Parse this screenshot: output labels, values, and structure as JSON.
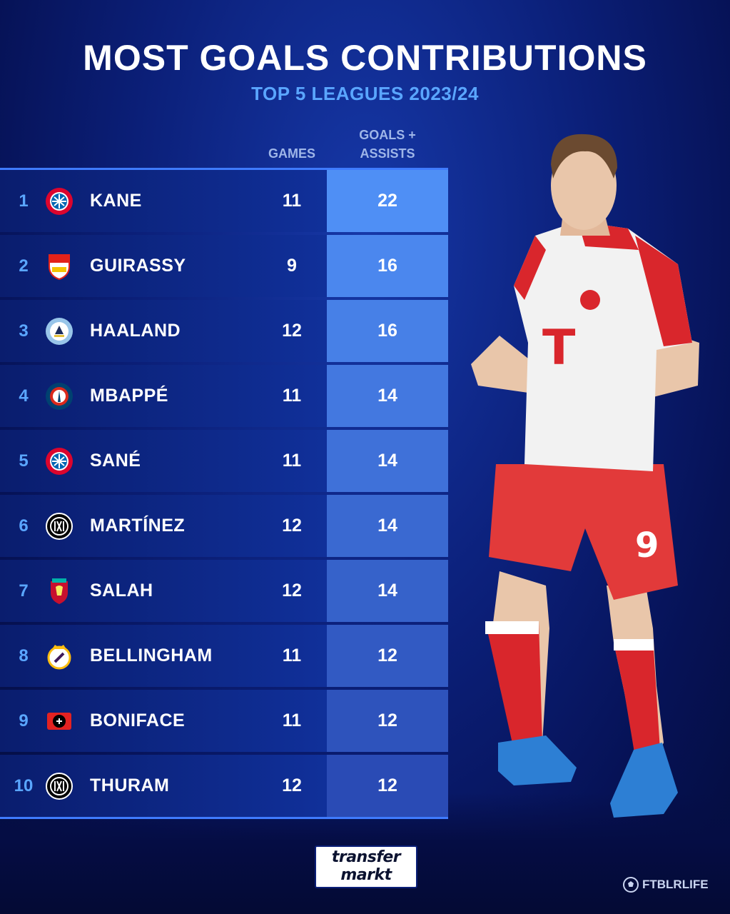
{
  "header": {
    "title": "MOST GOALS CONTRIBUTIONS",
    "subtitle": "TOP 5 LEAGUES 2023/24"
  },
  "columns": {
    "games": "GAMES",
    "goals_assists_line1": "GOALS +",
    "goals_assists_line2": "ASSISTS"
  },
  "chart_data": {
    "type": "table",
    "title": "MOST GOALS CONTRIBUTIONS",
    "subtitle": "TOP 5 LEAGUES 2023/24",
    "columns": [
      "",
      "",
      "GAMES",
      "GOALS + ASSISTS"
    ],
    "rows": [
      {
        "rank": "1",
        "name": "KANE",
        "club_icon": "bayern-munich-crest-icon",
        "games": 11,
        "goals_assists": 22
      },
      {
        "rank": "2",
        "name": "GUIRASSY",
        "club_icon": "vfb-stuttgart-crest-icon",
        "games": 9,
        "goals_assists": 16
      },
      {
        "rank": "3",
        "name": "HAALAND",
        "club_icon": "manchester-city-crest-icon",
        "games": 12,
        "goals_assists": 16
      },
      {
        "rank": "4",
        "name": "MBAPPÉ",
        "club_icon": "psg-crest-icon",
        "games": 11,
        "goals_assists": 14
      },
      {
        "rank": "5",
        "name": "SANÉ",
        "club_icon": "bayern-munich-crest-icon",
        "games": 11,
        "goals_assists": 14
      },
      {
        "rank": "6",
        "name": "MARTÍNEZ",
        "club_icon": "inter-milan-crest-icon",
        "games": 12,
        "goals_assists": 14
      },
      {
        "rank": "7",
        "name": "SALAH",
        "club_icon": "liverpool-crest-icon",
        "games": 12,
        "goals_assists": 14
      },
      {
        "rank": "8",
        "name": "BELLINGHAM",
        "club_icon": "real-madrid-crest-icon",
        "games": 11,
        "goals_assists": 12
      },
      {
        "rank": "9",
        "name": "BONIFACE",
        "club_icon": "bayer-leverkusen-crest-icon",
        "games": 11,
        "goals_assists": 12
      },
      {
        "rank": "10",
        "name": "THURAM",
        "club_icon": "inter-milan-crest-icon",
        "games": 12,
        "goals_assists": 12
      }
    ]
  },
  "colors": {
    "accent_blue": "#5aa6ff",
    "ga_cell_top": "#4f8ff5",
    "ga_cell_bottom": "#2a4bb5"
  },
  "branding": {
    "logo_line1": "transfer",
    "logo_line2": "markt",
    "credit": "FTBLRLIFE"
  },
  "images": {
    "player_photo": "harry-kane-bayern-kit-photo"
  }
}
